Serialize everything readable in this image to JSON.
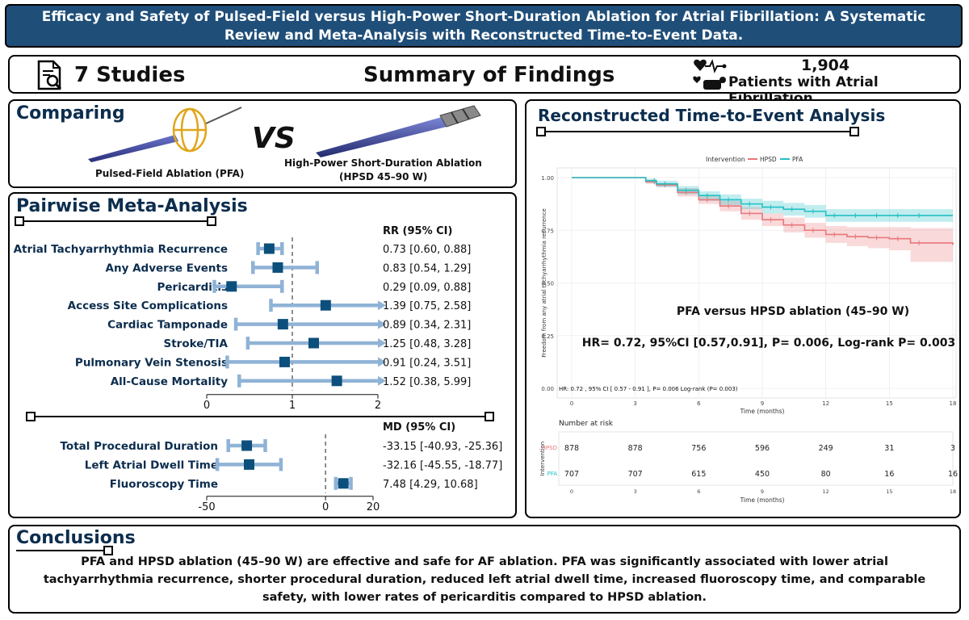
{
  "title": "Efficacy and Safety of Pulsed-Field versus High-Power Short-Duration Ablation for Atrial Fibrillation: A Systematic Review and Meta-Analysis with Reconstructed Time-to-Event Data.",
  "summary": {
    "studies": "7 Studies",
    "heading": "Summary of Findings",
    "patients_count": "1,904",
    "patients_label": "Patients with Atrial Fibrillation"
  },
  "comparing": {
    "heading": "Comparing",
    "vs": "VS",
    "pfa_label": "Pulsed-Field Ablation (PFA)",
    "hpsd_label_1": "High-Power Short-Duration Ablation",
    "hpsd_label_2": "(HPSD 45–90 W)"
  },
  "pairwise": {
    "heading": "Pairwise Meta-Analysis",
    "rr_header": "RR (95% CI)",
    "md_header": "MD (95% CI)",
    "rr_axis": [
      "0",
      "1",
      "2"
    ],
    "md_axis": [
      "-50",
      "0",
      "20"
    ]
  },
  "chart_data": [
    {
      "type": "forest",
      "measure": "RR (95% CI)",
      "xlim": [
        0,
        2
      ],
      "reference": 1,
      "rows": [
        {
          "label": "Any Atrial Tachyarrhythmia Recurrence",
          "est": 0.73,
          "lo": 0.6,
          "hi": 0.88,
          "text": "0.73 [0.60, 0.88]"
        },
        {
          "label": "Any Adverse Events",
          "est": 0.83,
          "lo": 0.54,
          "hi": 1.29,
          "text": "0.83 [0.54, 1.29]"
        },
        {
          "label": "Pericarditis",
          "est": 0.29,
          "lo": 0.09,
          "hi": 0.88,
          "text": "0.29 [0.09, 0.88]"
        },
        {
          "label": "Access Site Complications",
          "est": 1.39,
          "lo": 0.75,
          "hi": 2.58,
          "text": "1.39 [0.75, 2.58]"
        },
        {
          "label": "Cardiac Tamponade",
          "est": 0.89,
          "lo": 0.34,
          "hi": 2.31,
          "text": "0.89 [0.34, 2.31]"
        },
        {
          "label": "Stroke/TIA",
          "est": 1.25,
          "lo": 0.48,
          "hi": 3.28,
          "text": "1.25 [0.48, 3.28]"
        },
        {
          "label": "Pulmonary Vein Stenosis",
          "est": 0.91,
          "lo": 0.24,
          "hi": 3.51,
          "text": "0.91 [0.24, 3.51]"
        },
        {
          "label": "All-Cause Mortality",
          "est": 1.52,
          "lo": 0.38,
          "hi": 5.99,
          "text": "1.52 [0.38, 5.99]"
        }
      ]
    },
    {
      "type": "forest",
      "measure": "MD (95% CI)",
      "xlim": [
        -50,
        20
      ],
      "reference": 0,
      "rows": [
        {
          "label": "Total Procedural Duration",
          "est": -33.15,
          "lo": -40.93,
          "hi": -25.36,
          "text": "-33.15 [-40.93, -25.36]"
        },
        {
          "label": "Left Atrial Dwell Time",
          "est": -32.16,
          "lo": -45.55,
          "hi": -18.77,
          "text": "-32.16 [-45.55, -18.77]"
        },
        {
          "label": "Fluoroscopy Time",
          "est": 7.48,
          "lo": 4.29,
          "hi": 10.68,
          "text": "7.48 [4.29, 10.68]"
        }
      ]
    },
    {
      "type": "line",
      "title": "Reconstructed Time-to-Event Analysis",
      "legend_title": "Intervention",
      "xlabel": "Time (months)",
      "ylabel": "Freedom from any atrial tachyarrhythmia recurrence",
      "xlim": [
        0,
        18
      ],
      "ylim": [
        0,
        1
      ],
      "x_ticks": [
        "0",
        "3",
        "6",
        "9",
        "12",
        "15",
        "18"
      ],
      "y_ticks": [
        "0.00",
        "0.25",
        "0.50",
        "0.75",
        "1.00"
      ],
      "series": [
        {
          "name": "HPSD",
          "color": "#e8777a",
          "x": [
            0,
            3,
            3.5,
            4,
            5,
            6,
            7,
            8,
            9,
            10,
            11,
            12,
            13,
            14,
            15,
            16,
            18
          ],
          "y": [
            1,
            1,
            0.98,
            0.965,
            0.93,
            0.895,
            0.865,
            0.83,
            0.8,
            0.775,
            0.75,
            0.73,
            0.72,
            0.715,
            0.71,
            0.69,
            0.68
          ],
          "lo": [
            1,
            1,
            0.97,
            0.955,
            0.91,
            0.875,
            0.84,
            0.8,
            0.77,
            0.74,
            0.715,
            0.69,
            0.675,
            0.665,
            0.655,
            0.6,
            0.6
          ],
          "hi": [
            1,
            1,
            0.99,
            0.975,
            0.95,
            0.915,
            0.89,
            0.86,
            0.83,
            0.81,
            0.785,
            0.77,
            0.765,
            0.765,
            0.765,
            0.76,
            0.76
          ]
        },
        {
          "name": "PFA",
          "color": "#22c0c4",
          "x": [
            0,
            3,
            3.5,
            4,
            5,
            6,
            7,
            8,
            9,
            10,
            11,
            12,
            13,
            14,
            15,
            16,
            18
          ],
          "y": [
            1,
            1,
            0.985,
            0.97,
            0.94,
            0.915,
            0.895,
            0.875,
            0.86,
            0.85,
            0.84,
            0.82,
            0.82,
            0.82,
            0.82,
            0.82,
            0.82
          ],
          "lo": [
            1,
            1,
            0.975,
            0.955,
            0.92,
            0.89,
            0.87,
            0.85,
            0.83,
            0.82,
            0.81,
            0.79,
            0.79,
            0.79,
            0.79,
            0.79,
            0.79
          ],
          "hi": [
            1,
            1,
            0.995,
            0.985,
            0.96,
            0.935,
            0.92,
            0.9,
            0.89,
            0.88,
            0.87,
            0.85,
            0.85,
            0.85,
            0.85,
            0.85,
            0.85
          ]
        }
      ],
      "annotation_1": "PFA versus HPSD ablation (45–90 W)",
      "annotation_2": "HR= 0.72, 95%CI [0.57,0.91], P= 0.006, Log-rank P= 0.003",
      "annotation_small": "HR: 0.72 , 95% CI [ 0.57 - 0.91 ], P= 0.006 Log-rank (P= 0.003)",
      "risk_table": {
        "title": "Number at risk",
        "ylabel": "Intervention",
        "xlabel": "Time (months)",
        "rows": [
          {
            "name": "HPSD",
            "values": [
              "878",
              "878",
              "756",
              "596",
              "249",
              "31",
              "3"
            ]
          },
          {
            "name": "PFA",
            "values": [
              "707",
              "707",
              "615",
              "450",
              "80",
              "16",
              "16"
            ]
          }
        ]
      }
    }
  ],
  "conclusions": {
    "heading": "Conclusions",
    "text": "PFA and HPSD ablation (45–90 W) are effective and safe for AF ablation. PFA was significantly associated with lower atrial tachyarrhythmia recurrence, shorter procedural duration, reduced left atrial dwell time, increased fluoroscopy time, and comparable safety, with lower rates of pericarditis compared to HPSD ablation."
  },
  "colors": {
    "title_bg": "#1f4e79",
    "heading": "#0c2d4e",
    "forest_ci": "#8fb3d6",
    "forest_est": "#0d4f7c",
    "hpsd": "#e8777a",
    "pfa": "#22c0c4"
  }
}
